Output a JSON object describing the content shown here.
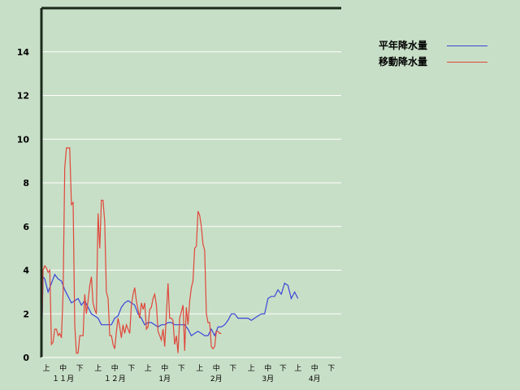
{
  "chart_data": {
    "type": "line",
    "ylim": [
      0,
      16
    ],
    "yticks": [
      0,
      2,
      4,
      6,
      8,
      10,
      12,
      14
    ],
    "xlim": [
      0,
      180
    ],
    "grid": true,
    "legend_position": "top-right",
    "xtick_labels": [
      {
        "x": 3,
        "label": "上"
      },
      {
        "x": 13,
        "label": "中"
      },
      {
        "x": 23,
        "label": "下"
      },
      {
        "x": 34,
        "label": "上"
      },
      {
        "x": 44,
        "label": "中"
      },
      {
        "x": 54,
        "label": "下"
      },
      {
        "x": 64,
        "label": "上"
      },
      {
        "x": 74,
        "label": "中"
      },
      {
        "x": 84,
        "label": "下"
      },
      {
        "x": 95,
        "label": "上"
      },
      {
        "x": 105,
        "label": "中"
      },
      {
        "x": 115,
        "label": "下"
      },
      {
        "x": 126,
        "label": "上"
      },
      {
        "x": 136,
        "label": "中"
      },
      {
        "x": 145,
        "label": "下"
      },
      {
        "x": 154,
        "label": "上"
      },
      {
        "x": 164,
        "label": "中"
      },
      {
        "x": 174,
        "label": "下"
      }
    ],
    "month_labels": [
      {
        "x": 13,
        "label": "１１月"
      },
      {
        "x": 44,
        "label": "１２月"
      },
      {
        "x": 74,
        "label": "1月"
      },
      {
        "x": 105,
        "label": "2月"
      },
      {
        "x": 136,
        "label": "3月"
      },
      {
        "x": 164,
        "label": "4月"
      }
    ],
    "series": [
      {
        "name": "平年降水量",
        "color": "#3a46d8",
        "points": [
          [
            0,
            0
          ],
          [
            1,
            3.7
          ],
          [
            2,
            3.6
          ],
          [
            4,
            3.0
          ],
          [
            6,
            3.4
          ],
          [
            8,
            3.8
          ],
          [
            10,
            3.6
          ],
          [
            12,
            3.5
          ],
          [
            14,
            3.1
          ],
          [
            16,
            2.8
          ],
          [
            18,
            2.5
          ],
          [
            20,
            2.6
          ],
          [
            22,
            2.7
          ],
          [
            24,
            2.4
          ],
          [
            26,
            2.6
          ],
          [
            28,
            2.3
          ],
          [
            30,
            2.0
          ],
          [
            32,
            1.9
          ],
          [
            34,
            1.8
          ],
          [
            36,
            1.5
          ],
          [
            38,
            1.5
          ],
          [
            40,
            1.5
          ],
          [
            42,
            1.5
          ],
          [
            44,
            1.8
          ],
          [
            46,
            1.9
          ],
          [
            48,
            2.3
          ],
          [
            50,
            2.5
          ],
          [
            52,
            2.6
          ],
          [
            54,
            2.5
          ],
          [
            56,
            2.4
          ],
          [
            58,
            2.0
          ],
          [
            60,
            1.8
          ],
          [
            62,
            1.5
          ],
          [
            64,
            1.6
          ],
          [
            66,
            1.6
          ],
          [
            68,
            1.5
          ],
          [
            70,
            1.4
          ],
          [
            72,
            1.5
          ],
          [
            74,
            1.5
          ],
          [
            76,
            1.6
          ],
          [
            78,
            1.6
          ],
          [
            80,
            1.5
          ],
          [
            82,
            1.5
          ],
          [
            84,
            1.5
          ],
          [
            86,
            1.5
          ],
          [
            88,
            1.3
          ],
          [
            90,
            1.0
          ],
          [
            92,
            1.1
          ],
          [
            94,
            1.2
          ],
          [
            96,
            1.1
          ],
          [
            98,
            1.0
          ],
          [
            100,
            1.0
          ],
          [
            102,
            1.3
          ],
          [
            104,
            1.0
          ],
          [
            106,
            1.4
          ],
          [
            108,
            1.4
          ],
          [
            110,
            1.5
          ],
          [
            112,
            1.7
          ],
          [
            114,
            2.0
          ],
          [
            116,
            2.0
          ],
          [
            118,
            1.8
          ],
          [
            120,
            1.8
          ],
          [
            122,
            1.8
          ],
          [
            124,
            1.8
          ],
          [
            126,
            1.7
          ],
          [
            128,
            1.8
          ],
          [
            130,
            1.9
          ],
          [
            132,
            2.0
          ],
          [
            134,
            2.0
          ],
          [
            136,
            2.7
          ],
          [
            138,
            2.8
          ],
          [
            140,
            2.8
          ],
          [
            142,
            3.1
          ],
          [
            144,
            2.9
          ],
          [
            146,
            3.4
          ],
          [
            148,
            3.3
          ],
          [
            150,
            2.7
          ],
          [
            152,
            3.0
          ],
          [
            154,
            2.7
          ]
        ]
      },
      {
        "name": "移動降水量",
        "color": "#e0463a",
        "points": [
          [
            0,
            0
          ],
          [
            1,
            4.0
          ],
          [
            2,
            4.2
          ],
          [
            3,
            4.1
          ],
          [
            4,
            3.9
          ],
          [
            5,
            4.0
          ],
          [
            6,
            0.6
          ],
          [
            7,
            0.7
          ],
          [
            8,
            1.3
          ],
          [
            9,
            1.3
          ],
          [
            10,
            1.0
          ],
          [
            11,
            1.1
          ],
          [
            12,
            0.9
          ],
          [
            13,
            3.0
          ],
          [
            14,
            8.7
          ],
          [
            15,
            9.6
          ],
          [
            16,
            9.6
          ],
          [
            17,
            9.6
          ],
          [
            18,
            7.0
          ],
          [
            19,
            7.1
          ],
          [
            20,
            1.5
          ],
          [
            21,
            0.2
          ],
          [
            22,
            0.2
          ],
          [
            23,
            1.0
          ],
          [
            24,
            1.0
          ],
          [
            25,
            1.0
          ],
          [
            26,
            2.9
          ],
          [
            27,
            2.0
          ],
          [
            28,
            2.6
          ],
          [
            29,
            3.3
          ],
          [
            30,
            3.7
          ],
          [
            31,
            2.5
          ],
          [
            32,
            2.2
          ],
          [
            33,
            2.0
          ],
          [
            34,
            6.6
          ],
          [
            35,
            5.0
          ],
          [
            36,
            7.2
          ],
          [
            37,
            7.2
          ],
          [
            38,
            6.2
          ],
          [
            39,
            3.0
          ],
          [
            40,
            2.7
          ],
          [
            41,
            1.0
          ],
          [
            42,
            1.0
          ],
          [
            43,
            0.6
          ],
          [
            44,
            0.4
          ],
          [
            45,
            1.2
          ],
          [
            46,
            1.8
          ],
          [
            47,
            1.4
          ],
          [
            48,
            0.9
          ],
          [
            49,
            1.5
          ],
          [
            50,
            1.1
          ],
          [
            51,
            1.5
          ],
          [
            52,
            1.3
          ],
          [
            53,
            1.1
          ],
          [
            54,
            2.4
          ],
          [
            55,
            2.9
          ],
          [
            56,
            3.2
          ],
          [
            57,
            2.6
          ],
          [
            58,
            2.2
          ],
          [
            59,
            1.8
          ],
          [
            60,
            2.5
          ],
          [
            61,
            2.2
          ],
          [
            62,
            2.5
          ],
          [
            63,
            1.3
          ],
          [
            64,
            1.4
          ],
          [
            65,
            2.2
          ],
          [
            66,
            2.3
          ],
          [
            67,
            2.7
          ],
          [
            68,
            2.9
          ],
          [
            69,
            2.4
          ],
          [
            70,
            1.2
          ],
          [
            71,
            1.0
          ],
          [
            72,
            0.8
          ],
          [
            73,
            1.3
          ],
          [
            74,
            0.5
          ],
          [
            75,
            2.0
          ],
          [
            76,
            3.4
          ],
          [
            77,
            1.8
          ],
          [
            78,
            1.8
          ],
          [
            79,
            1.7
          ],
          [
            80,
            0.6
          ],
          [
            81,
            1.0
          ],
          [
            82,
            0.2
          ],
          [
            83,
            1.8
          ],
          [
            84,
            2.1
          ],
          [
            85,
            2.4
          ],
          [
            86,
            0.3
          ],
          [
            87,
            2.3
          ],
          [
            88,
            1.5
          ],
          [
            89,
            2.6
          ],
          [
            90,
            3.2
          ],
          [
            91,
            3.5
          ],
          [
            92,
            5.0
          ],
          [
            93,
            5.1
          ],
          [
            94,
            6.7
          ],
          [
            95,
            6.5
          ],
          [
            96,
            6.0
          ],
          [
            97,
            5.2
          ],
          [
            98,
            4.9
          ],
          [
            99,
            2.0
          ],
          [
            100,
            1.6
          ],
          [
            101,
            1.6
          ],
          [
            102,
            0.5
          ],
          [
            103,
            0.4
          ],
          [
            104,
            0.5
          ],
          [
            105,
            1.2
          ],
          [
            106,
            1.2
          ],
          [
            107,
            1.1
          ],
          [
            108,
            1.1
          ]
        ]
      }
    ]
  }
}
